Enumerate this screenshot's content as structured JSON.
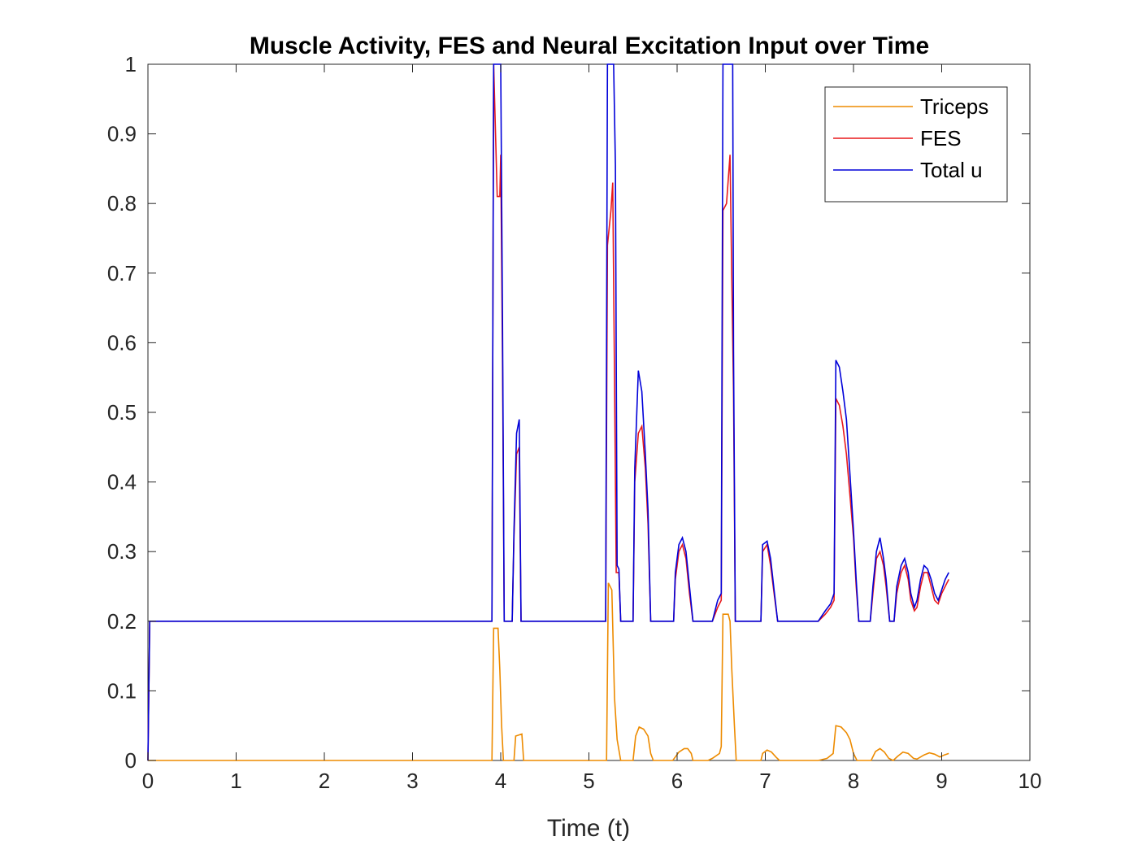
{
  "chart_data": {
    "type": "line",
    "title": "Muscle Activity, FES and Neural Excitation Input over Time",
    "xlabel": "Time (t)",
    "ylabel": "",
    "xlim": [
      0,
      10
    ],
    "ylim": [
      0,
      1
    ],
    "xticks": [
      "0",
      "1",
      "2",
      "3",
      "4",
      "5",
      "6",
      "7",
      "8",
      "9",
      "10"
    ],
    "yticks": [
      "0",
      "0.1",
      "0.2",
      "0.3",
      "0.4",
      "0.5",
      "0.6",
      "0.7",
      "0.8",
      "0.9",
      "1"
    ],
    "grid": false,
    "legend_position": "top-right",
    "series": [
      {
        "name": "Triceps",
        "color": "#ed8b00",
        "points": [
          [
            0,
            0
          ],
          [
            3.9,
            0
          ],
          [
            3.92,
            0.19
          ],
          [
            3.97,
            0.19
          ],
          [
            3.99,
            0.13
          ],
          [
            4.01,
            0.05
          ],
          [
            4.03,
            0
          ],
          [
            4.15,
            0
          ],
          [
            4.17,
            0.035
          ],
          [
            4.24,
            0.038
          ],
          [
            4.26,
            0
          ],
          [
            5.2,
            0
          ],
          [
            5.22,
            0.255
          ],
          [
            5.26,
            0.245
          ],
          [
            5.29,
            0.09
          ],
          [
            5.32,
            0.03
          ],
          [
            5.36,
            0
          ],
          [
            5.5,
            0
          ],
          [
            5.53,
            0.035
          ],
          [
            5.57,
            0.048
          ],
          [
            5.62,
            0.045
          ],
          [
            5.67,
            0.035
          ],
          [
            5.7,
            0.01
          ],
          [
            5.73,
            0
          ],
          [
            5.95,
            0
          ],
          [
            5.98,
            0.005
          ],
          [
            6.02,
            0.012
          ],
          [
            6.08,
            0.017
          ],
          [
            6.12,
            0.017
          ],
          [
            6.16,
            0.01
          ],
          [
            6.18,
            0
          ],
          [
            6.35,
            0
          ],
          [
            6.4,
            0.003
          ],
          [
            6.48,
            0.01
          ],
          [
            6.5,
            0.02
          ],
          [
            6.52,
            0.21
          ],
          [
            6.58,
            0.21
          ],
          [
            6.6,
            0.2
          ],
          [
            6.62,
            0.13
          ],
          [
            6.65,
            0.05
          ],
          [
            6.67,
            0
          ],
          [
            6.95,
            0
          ],
          [
            6.97,
            0.01
          ],
          [
            7.02,
            0.015
          ],
          [
            7.07,
            0.012
          ],
          [
            7.12,
            0.005
          ],
          [
            7.16,
            0
          ],
          [
            7.6,
            0
          ],
          [
            7.7,
            0.003
          ],
          [
            7.77,
            0.01
          ],
          [
            7.8,
            0.05
          ],
          [
            7.86,
            0.048
          ],
          [
            7.92,
            0.04
          ],
          [
            7.96,
            0.03
          ],
          [
            8.0,
            0.01
          ],
          [
            8.04,
            0
          ],
          [
            8.2,
            0
          ],
          [
            8.25,
            0.013
          ],
          [
            8.3,
            0.017
          ],
          [
            8.35,
            0.012
          ],
          [
            8.4,
            0.003
          ],
          [
            8.45,
            0
          ],
          [
            8.5,
            0.006
          ],
          [
            8.56,
            0.012
          ],
          [
            8.62,
            0.01
          ],
          [
            8.68,
            0.003
          ],
          [
            8.72,
            0.002
          ],
          [
            8.8,
            0.008
          ],
          [
            8.86,
            0.011
          ],
          [
            8.92,
            0.009
          ],
          [
            8.98,
            0.005
          ],
          [
            9.03,
            0.008
          ],
          [
            9.08,
            0.01
          ]
        ]
      },
      {
        "name": "FES",
        "color": "#e8191c",
        "points": [
          [
            0,
            0
          ],
          [
            0.02,
            0.2
          ],
          [
            3.9,
            0.2
          ],
          [
            3.92,
            1
          ],
          [
            3.96,
            0.81
          ],
          [
            3.99,
            0.81
          ],
          [
            4.0,
            0.87
          ],
          [
            4.02,
            0.575
          ],
          [
            4.04,
            0.2
          ],
          [
            4.13,
            0.2
          ],
          [
            4.15,
            0.32
          ],
          [
            4.18,
            0.44
          ],
          [
            4.21,
            0.45
          ],
          [
            4.23,
            0.2
          ],
          [
            5.19,
            0.2
          ],
          [
            5.21,
            0.74
          ],
          [
            5.25,
            0.79
          ],
          [
            5.27,
            0.83
          ],
          [
            5.29,
            0.55
          ],
          [
            5.31,
            0.27
          ],
          [
            5.34,
            0.27
          ],
          [
            5.36,
            0.2
          ],
          [
            5.5,
            0.2
          ],
          [
            5.52,
            0.4
          ],
          [
            5.56,
            0.47
          ],
          [
            5.6,
            0.48
          ],
          [
            5.64,
            0.42
          ],
          [
            5.67,
            0.34
          ],
          [
            5.7,
            0.2
          ],
          [
            5.96,
            0.2
          ],
          [
            5.98,
            0.26
          ],
          [
            6.02,
            0.3
          ],
          [
            6.06,
            0.31
          ],
          [
            6.1,
            0.29
          ],
          [
            6.14,
            0.24
          ],
          [
            6.18,
            0.2
          ],
          [
            6.4,
            0.2
          ],
          [
            6.46,
            0.22
          ],
          [
            6.5,
            0.23
          ],
          [
            6.52,
            0.79
          ],
          [
            6.56,
            0.8
          ],
          [
            6.6,
            0.87
          ],
          [
            6.62,
            0.69
          ],
          [
            6.64,
            0.53
          ],
          [
            6.66,
            0.2
          ],
          [
            6.95,
            0.2
          ],
          [
            6.97,
            0.3
          ],
          [
            7.02,
            0.31
          ],
          [
            7.06,
            0.28
          ],
          [
            7.1,
            0.24
          ],
          [
            7.14,
            0.2
          ],
          [
            7.6,
            0.2
          ],
          [
            7.68,
            0.21
          ],
          [
            7.74,
            0.22
          ],
          [
            7.78,
            0.23
          ],
          [
            7.8,
            0.52
          ],
          [
            7.84,
            0.51
          ],
          [
            7.88,
            0.48
          ],
          [
            7.92,
            0.44
          ],
          [
            7.96,
            0.38
          ],
          [
            8.0,
            0.32
          ],
          [
            8.03,
            0.25
          ],
          [
            8.06,
            0.2
          ],
          [
            8.19,
            0.2
          ],
          [
            8.22,
            0.24
          ],
          [
            8.26,
            0.29
          ],
          [
            8.3,
            0.3
          ],
          [
            8.34,
            0.28
          ],
          [
            8.37,
            0.25
          ],
          [
            8.41,
            0.2
          ],
          [
            8.46,
            0.2
          ],
          [
            8.49,
            0.24
          ],
          [
            8.54,
            0.27
          ],
          [
            8.58,
            0.28
          ],
          [
            8.62,
            0.26
          ],
          [
            8.65,
            0.23
          ],
          [
            8.69,
            0.215
          ],
          [
            8.72,
            0.22
          ],
          [
            8.76,
            0.25
          ],
          [
            8.8,
            0.27
          ],
          [
            8.84,
            0.27
          ],
          [
            8.88,
            0.25
          ],
          [
            8.92,
            0.23
          ],
          [
            8.96,
            0.225
          ],
          [
            9.0,
            0.24
          ],
          [
            9.04,
            0.25
          ],
          [
            9.08,
            0.26
          ]
        ]
      },
      {
        "name": "Total u",
        "color": "#0000d9",
        "points": [
          [
            0,
            0
          ],
          [
            0.02,
            0.2
          ],
          [
            3.9,
            0.2
          ],
          [
            3.92,
            1
          ],
          [
            4.0,
            1
          ],
          [
            4.02,
            0.63
          ],
          [
            4.04,
            0.2
          ],
          [
            4.13,
            0.2
          ],
          [
            4.15,
            0.33
          ],
          [
            4.18,
            0.47
          ],
          [
            4.21,
            0.49
          ],
          [
            4.23,
            0.2
          ],
          [
            5.19,
            0.2
          ],
          [
            5.21,
            1
          ],
          [
            5.28,
            1
          ],
          [
            5.3,
            0.855
          ],
          [
            5.32,
            0.28
          ],
          [
            5.34,
            0.275
          ],
          [
            5.36,
            0.2
          ],
          [
            5.5,
            0.2
          ],
          [
            5.52,
            0.42
          ],
          [
            5.56,
            0.56
          ],
          [
            5.6,
            0.53
          ],
          [
            5.64,
            0.44
          ],
          [
            5.67,
            0.36
          ],
          [
            5.7,
            0.2
          ],
          [
            5.96,
            0.2
          ],
          [
            5.98,
            0.27
          ],
          [
            6.02,
            0.31
          ],
          [
            6.06,
            0.32
          ],
          [
            6.1,
            0.3
          ],
          [
            6.14,
            0.25
          ],
          [
            6.18,
            0.2
          ],
          [
            6.4,
            0.2
          ],
          [
            6.46,
            0.23
          ],
          [
            6.5,
            0.24
          ],
          [
            6.52,
            1
          ],
          [
            6.63,
            1
          ],
          [
            6.64,
            0.59
          ],
          [
            6.66,
            0.2
          ],
          [
            6.95,
            0.2
          ],
          [
            6.97,
            0.31
          ],
          [
            7.02,
            0.315
          ],
          [
            7.06,
            0.29
          ],
          [
            7.1,
            0.245
          ],
          [
            7.14,
            0.2
          ],
          [
            7.6,
            0.2
          ],
          [
            7.68,
            0.215
          ],
          [
            7.74,
            0.225
          ],
          [
            7.78,
            0.24
          ],
          [
            7.8,
            0.575
          ],
          [
            7.84,
            0.565
          ],
          [
            7.88,
            0.53
          ],
          [
            7.92,
            0.49
          ],
          [
            7.96,
            0.41
          ],
          [
            8.0,
            0.33
          ],
          [
            8.03,
            0.26
          ],
          [
            8.06,
            0.2
          ],
          [
            8.19,
            0.2
          ],
          [
            8.22,
            0.25
          ],
          [
            8.26,
            0.3
          ],
          [
            8.3,
            0.32
          ],
          [
            8.34,
            0.29
          ],
          [
            8.37,
            0.26
          ],
          [
            8.41,
            0.2
          ],
          [
            8.46,
            0.2
          ],
          [
            8.49,
            0.25
          ],
          [
            8.54,
            0.28
          ],
          [
            8.58,
            0.29
          ],
          [
            8.62,
            0.27
          ],
          [
            8.65,
            0.24
          ],
          [
            8.69,
            0.22
          ],
          [
            8.72,
            0.23
          ],
          [
            8.76,
            0.26
          ],
          [
            8.8,
            0.28
          ],
          [
            8.84,
            0.275
          ],
          [
            8.88,
            0.26
          ],
          [
            8.92,
            0.24
          ],
          [
            8.96,
            0.23
          ],
          [
            9.0,
            0.245
          ],
          [
            9.04,
            0.26
          ],
          [
            9.08,
            0.27
          ]
        ]
      }
    ]
  }
}
